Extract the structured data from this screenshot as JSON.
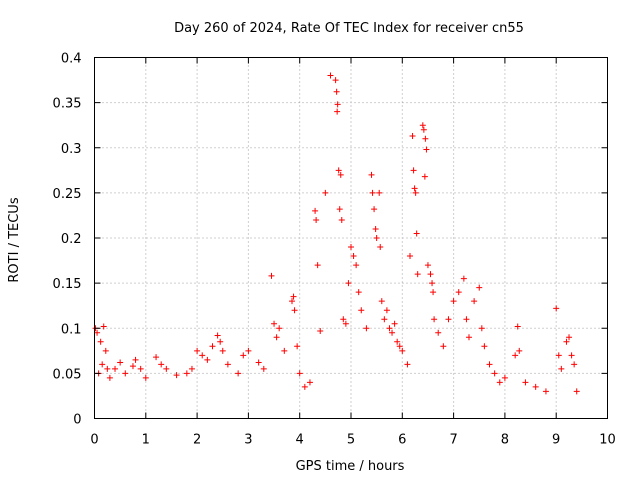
{
  "chart_data": {
    "type": "scatter",
    "title": "Day 260 of 2024, Rate Of TEC Index for receiver cn55",
    "xlabel": "GPS time / hours",
    "ylabel": "ROTI / TECUs",
    "xlim": [
      0,
      10
    ],
    "ylim": [
      0,
      0.4
    ],
    "x_ticks": [
      "0",
      "1",
      "2",
      "3",
      "4",
      "5",
      "6",
      "7",
      "8",
      "9",
      "10"
    ],
    "y_ticks": [
      "0",
      "0.05",
      "0.1",
      "0.15",
      "0.2",
      "0.25",
      "0.3",
      "0.35",
      "0.4"
    ],
    "grid": true,
    "marker": "+",
    "color": "#ff0000",
    "series": [
      {
        "name": "ROTI",
        "points": [
          [
            0.02,
            0.1
          ],
          [
            0.05,
            0.095
          ],
          [
            0.08,
            0.05
          ],
          [
            0.12,
            0.085
          ],
          [
            0.15,
            0.06
          ],
          [
            0.18,
            0.102
          ],
          [
            0.22,
            0.075
          ],
          [
            0.25,
            0.055
          ],
          [
            0.3,
            0.045
          ],
          [
            0.4,
            0.055
          ],
          [
            0.5,
            0.062
          ],
          [
            0.6,
            0.05
          ],
          [
            0.75,
            0.058
          ],
          [
            0.8,
            0.065
          ],
          [
            0.9,
            0.055
          ],
          [
            1.0,
            0.045
          ],
          [
            1.2,
            0.068
          ],
          [
            1.3,
            0.06
          ],
          [
            1.4,
            0.055
          ],
          [
            1.6,
            0.048
          ],
          [
            1.8,
            0.05
          ],
          [
            1.9,
            0.055
          ],
          [
            2.0,
            0.075
          ],
          [
            2.1,
            0.07
          ],
          [
            2.2,
            0.065
          ],
          [
            2.3,
            0.08
          ],
          [
            2.4,
            0.092
          ],
          [
            2.45,
            0.085
          ],
          [
            2.5,
            0.075
          ],
          [
            2.6,
            0.06
          ],
          [
            2.8,
            0.05
          ],
          [
            2.9,
            0.07
          ],
          [
            3.0,
            0.075
          ],
          [
            3.2,
            0.062
          ],
          [
            3.3,
            0.055
          ],
          [
            3.45,
            0.158
          ],
          [
            3.5,
            0.105
          ],
          [
            3.55,
            0.09
          ],
          [
            3.6,
            0.1
          ],
          [
            3.7,
            0.075
          ],
          [
            3.85,
            0.13
          ],
          [
            3.88,
            0.135
          ],
          [
            3.9,
            0.12
          ],
          [
            3.95,
            0.08
          ],
          [
            4.0,
            0.05
          ],
          [
            4.1,
            0.035
          ],
          [
            4.2,
            0.04
          ],
          [
            4.3,
            0.23
          ],
          [
            4.32,
            0.22
          ],
          [
            4.35,
            0.17
          ],
          [
            4.4,
            0.097
          ],
          [
            4.5,
            0.25
          ],
          [
            4.6,
            0.38
          ],
          [
            4.7,
            0.375
          ],
          [
            4.72,
            0.362
          ],
          [
            4.74,
            0.348
          ],
          [
            4.73,
            0.34
          ],
          [
            4.76,
            0.275
          ],
          [
            4.8,
            0.27
          ],
          [
            4.78,
            0.232
          ],
          [
            4.82,
            0.22
          ],
          [
            4.85,
            0.11
          ],
          [
            4.9,
            0.105
          ],
          [
            4.95,
            0.15
          ],
          [
            5.0,
            0.19
          ],
          [
            5.05,
            0.18
          ],
          [
            5.1,
            0.17
          ],
          [
            5.15,
            0.14
          ],
          [
            5.2,
            0.12
          ],
          [
            5.3,
            0.1
          ],
          [
            5.4,
            0.27
          ],
          [
            5.42,
            0.25
          ],
          [
            5.45,
            0.232
          ],
          [
            5.48,
            0.21
          ],
          [
            5.5,
            0.2
          ],
          [
            5.55,
            0.25
          ],
          [
            5.57,
            0.19
          ],
          [
            5.6,
            0.13
          ],
          [
            5.65,
            0.11
          ],
          [
            5.7,
            0.12
          ],
          [
            5.75,
            0.1
          ],
          [
            5.8,
            0.095
          ],
          [
            5.85,
            0.105
          ],
          [
            5.9,
            0.085
          ],
          [
            5.95,
            0.08
          ],
          [
            6.0,
            0.075
          ],
          [
            6.1,
            0.06
          ],
          [
            6.15,
            0.18
          ],
          [
            6.2,
            0.313
          ],
          [
            6.22,
            0.275
          ],
          [
            6.24,
            0.255
          ],
          [
            6.26,
            0.25
          ],
          [
            6.28,
            0.205
          ],
          [
            6.3,
            0.16
          ],
          [
            6.4,
            0.325
          ],
          [
            6.42,
            0.32
          ],
          [
            6.45,
            0.31
          ],
          [
            6.47,
            0.298
          ],
          [
            6.44,
            0.268
          ],
          [
            6.5,
            0.17
          ],
          [
            6.55,
            0.16
          ],
          [
            6.58,
            0.15
          ],
          [
            6.6,
            0.14
          ],
          [
            6.62,
            0.11
          ],
          [
            6.7,
            0.095
          ],
          [
            6.8,
            0.08
          ],
          [
            6.9,
            0.11
          ],
          [
            7.0,
            0.13
          ],
          [
            7.1,
            0.14
          ],
          [
            7.2,
            0.155
          ],
          [
            7.25,
            0.11
          ],
          [
            7.3,
            0.09
          ],
          [
            7.4,
            0.13
          ],
          [
            7.5,
            0.145
          ],
          [
            7.55,
            0.1
          ],
          [
            7.6,
            0.08
          ],
          [
            7.7,
            0.06
          ],
          [
            7.8,
            0.05
          ],
          [
            7.9,
            0.04
          ],
          [
            8.0,
            0.045
          ],
          [
            8.2,
            0.07
          ],
          [
            8.25,
            0.102
          ],
          [
            8.28,
            0.075
          ],
          [
            8.4,
            0.04
          ],
          [
            8.6,
            0.035
          ],
          [
            8.8,
            0.03
          ],
          [
            9.0,
            0.122
          ],
          [
            9.05,
            0.07
          ],
          [
            9.1,
            0.055
          ],
          [
            9.2,
            0.085
          ],
          [
            9.25,
            0.09
          ],
          [
            9.3,
            0.07
          ],
          [
            9.35,
            0.06
          ],
          [
            9.4,
            0.03
          ]
        ]
      }
    ]
  }
}
